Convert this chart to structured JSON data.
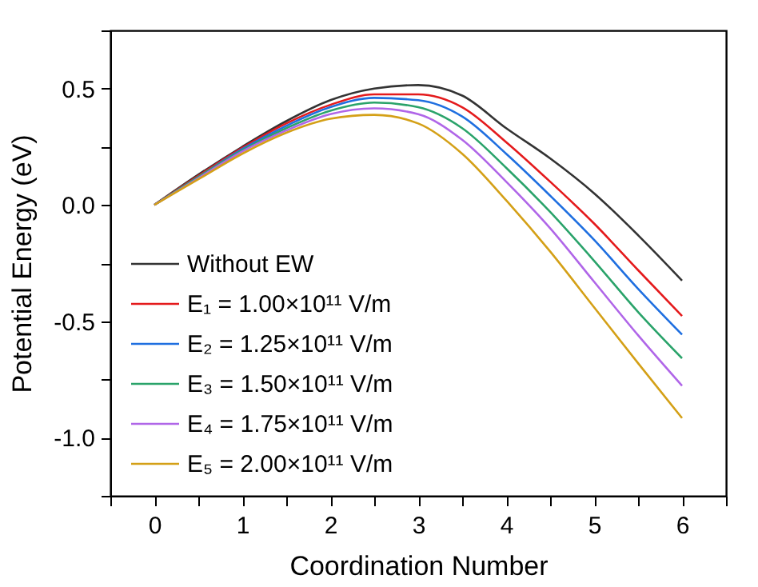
{
  "chart_data": {
    "type": "line",
    "xlabel": "Coordination Number",
    "ylabel": "Potential Energy (eV)",
    "x": [
      0,
      0.5,
      1,
      1.5,
      2,
      2.5,
      3,
      3.5,
      4,
      4.5,
      5,
      5.5,
      6
    ],
    "series": [
      {
        "name": "Without EW",
        "color": "#333333",
        "values": [
          0,
          0.13,
          0.25,
          0.36,
          0.45,
          0.5,
          0.515,
          0.47,
          0.33,
          0.2,
          0.05,
          -0.13,
          -0.325
        ]
      },
      {
        "name": "E₁ = 1.00×10¹¹ V/m",
        "color": "#e41a1c",
        "values": [
          0,
          0.125,
          0.245,
          0.35,
          0.43,
          0.475,
          0.475,
          0.42,
          0.27,
          0.1,
          -0.08,
          -0.28,
          -0.477
        ]
      },
      {
        "name": "E₂ = 1.25×10¹¹ V/m",
        "color": "#1f6fe0",
        "values": [
          0,
          0.12,
          0.24,
          0.34,
          0.42,
          0.46,
          0.45,
          0.38,
          0.22,
          0.04,
          -0.15,
          -0.36,
          -0.557
        ]
      },
      {
        "name": "E₃ = 1.50×10¹¹ V/m",
        "color": "#2aa36a",
        "values": [
          0,
          0.12,
          0.235,
          0.33,
          0.405,
          0.44,
          0.42,
          0.33,
          0.16,
          -0.03,
          -0.24,
          -0.46,
          -0.659
        ]
      },
      {
        "name": "E₄ = 1.75×10¹¹ V/m",
        "color": "#b066e8",
        "values": [
          0,
          0.115,
          0.23,
          0.32,
          0.39,
          0.415,
          0.39,
          0.28,
          0.1,
          -0.1,
          -0.33,
          -0.56,
          -0.777
        ]
      },
      {
        "name": "E₅ = 2.00×10¹¹ V/m",
        "color": "#d4a017",
        "values": [
          0,
          0.11,
          0.22,
          0.31,
          0.37,
          0.387,
          0.35,
          0.22,
          0.02,
          -0.2,
          -0.44,
          -0.68,
          -0.916
        ]
      }
    ],
    "xlim": [
      -0.5,
      6.5
    ],
    "xticks": [
      {
        "value": -0.5,
        "label": null
      },
      0,
      {
        "value": 0.5,
        "label": null
      },
      1,
      {
        "value": 1.5,
        "label": null
      },
      2,
      {
        "value": 2.5,
        "label": null
      },
      3,
      {
        "value": 3.5,
        "label": null
      },
      4,
      {
        "value": 4.5,
        "label": null
      },
      5,
      {
        "value": 5.5,
        "label": null
      },
      6,
      {
        "value": 6.5,
        "label": null
      }
    ],
    "ylim": [
      -1.25,
      0.75
    ],
    "yticks": [
      {
        "value": -1.25,
        "label": null
      },
      {
        "value": -1.0,
        "label": "-1.0"
      },
      {
        "value": -0.75,
        "label": null
      },
      {
        "value": -0.5,
        "label": "-0.5"
      },
      {
        "value": -0.25,
        "label": null
      },
      {
        "value": 0,
        "label": "0.0"
      },
      {
        "value": 0.25,
        "label": null
      },
      {
        "value": 0.5,
        "label": "0.5"
      },
      {
        "value": 0.75,
        "label": null
      }
    ],
    "legend": "bottom left",
    "grid": false,
    "marker": "none",
    "line_style": "solid"
  }
}
